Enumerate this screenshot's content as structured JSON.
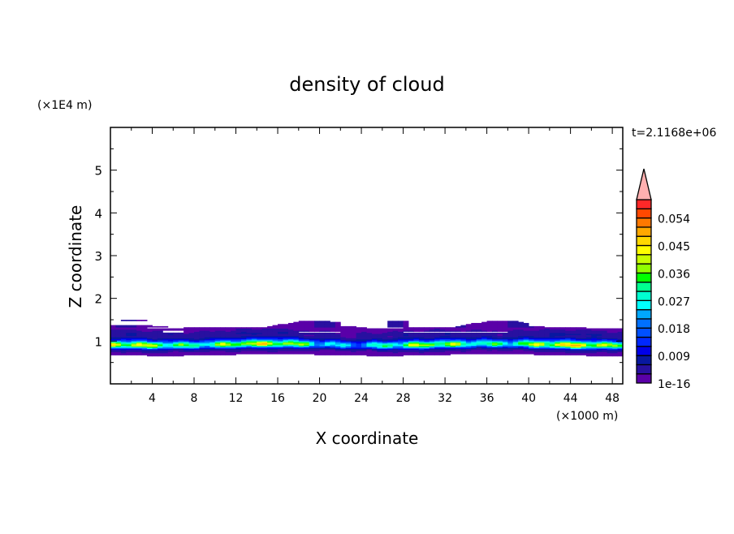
{
  "chart_data": {
    "type": "heatmap",
    "title": "density of cloud",
    "xlabel": "X coordinate",
    "ylabel": "Z coordinate",
    "x_unit": "(×1000 m)",
    "y_unit": "(×1E4 m)",
    "time_label": "t=2.1168e+06",
    "xlim": [
      0,
      49
    ],
    "ylim": [
      0,
      6
    ],
    "x_ticks": [
      4,
      8,
      12,
      16,
      20,
      24,
      28,
      32,
      36,
      40,
      44,
      48
    ],
    "y_ticks": [
      1,
      2,
      3,
      4,
      5
    ],
    "colorbar": {
      "levels": [
        1e-16,
        0.003,
        0.006,
        0.009,
        0.012,
        0.015,
        0.018,
        0.021,
        0.024,
        0.027,
        0.03,
        0.033,
        0.036,
        0.039,
        0.042,
        0.045,
        0.048,
        0.051,
        0.054,
        0.057
      ],
      "tick_labels": [
        "1e-16",
        "0.009",
        "0.018",
        "0.027",
        "0.036",
        "0.045",
        "0.054"
      ],
      "tick_values": [
        0,
        0.009,
        0.018,
        0.027,
        0.036,
        0.045,
        0.054
      ],
      "colors": [
        "#5a00a8",
        "#2810a0",
        "#0818a0",
        "#0000e8",
        "#0028ff",
        "#0050ff",
        "#0070ff",
        "#00a8ff",
        "#00ffff",
        "#00ffd0",
        "#00ff90",
        "#00ff00",
        "#90ff00",
        "#c8ff00",
        "#ffff00",
        "#ffd800",
        "#ffa800",
        "#ff7800",
        "#ff4800",
        "#ff2828"
      ],
      "overflow_color": "#ffb0b0"
    },
    "vertical_profile": {
      "z": [
        0.68,
        0.74,
        0.8,
        0.84,
        0.88,
        0.92,
        0.96,
        1.0,
        1.04,
        1.08,
        1.12,
        1.18,
        1.24,
        1.3,
        1.33
      ],
      "density": [
        0.0,
        0.002,
        0.005,
        0.012,
        0.026,
        0.034,
        0.03,
        0.02,
        0.011,
        0.007,
        0.004,
        0.005,
        0.003,
        0.002,
        0.0
      ]
    }
  }
}
